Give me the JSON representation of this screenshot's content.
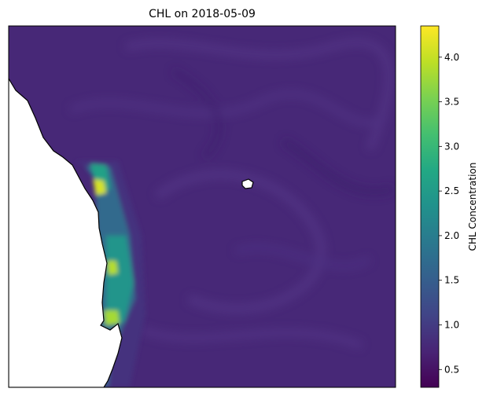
{
  "title": "CHL on 2018-05-09",
  "colorbar": {
    "label": "CHL Concentration",
    "min": 0.3,
    "max": 4.35,
    "ticks": [
      "0.5",
      "1.0",
      "1.5",
      "2.0",
      "2.5",
      "3.0",
      "3.5",
      "4.0"
    ],
    "tick_values": [
      0.5,
      1.0,
      1.5,
      2.0,
      2.5,
      3.0,
      3.5,
      4.0
    ],
    "colors": [
      "#440154",
      "#482475",
      "#414487",
      "#355f8d",
      "#2a788e",
      "#21918c",
      "#22a884",
      "#44bf70",
      "#7ad151",
      "#bddf26",
      "#fde725"
    ]
  },
  "map": {
    "background_value": 0.75,
    "features": [
      "coastline",
      "island"
    ]
  }
}
